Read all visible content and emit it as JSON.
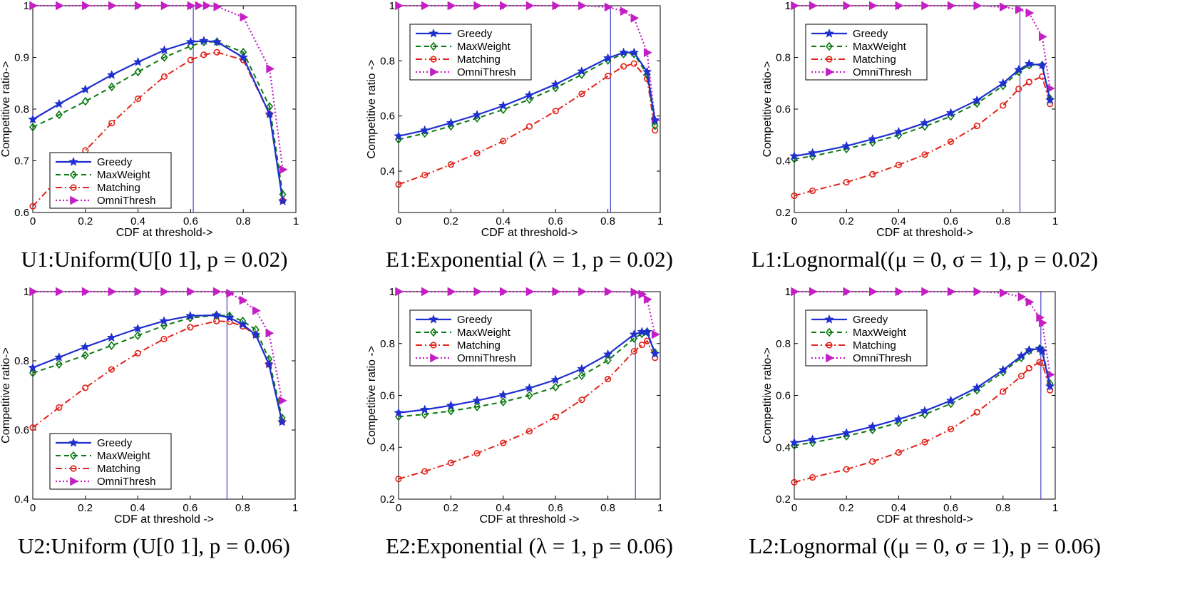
{
  "figure": {
    "colors": {
      "Greedy": "#1f2fd0",
      "MaxWeight": "#0a7a10",
      "Matching": "#e2231a",
      "OmniThresh": "#c41ec4",
      "threshold_line": "#2020c0"
    }
  },
  "chart_data": [
    {
      "type": "line",
      "caption": "U1:Uniform(U[0 1], p = 0.02)",
      "xlabel": "CDF at threshold->",
      "ylabel": "Competitive ratio->",
      "xlim": [
        0,
        1
      ],
      "ylim": [
        0.6,
        1
      ],
      "xticks": [
        0,
        0.2,
        0.4,
        0.6,
        0.8,
        1
      ],
      "xtick_labels": [
        "0",
        "0.2",
        "0.4",
        "0.6",
        "0.8",
        "1"
      ],
      "yticks": [
        0.6,
        0.7,
        0.8,
        0.9,
        1
      ],
      "ytick_labels": [
        "0.6",
        "0.7",
        "0.8",
        "0.9",
        "1"
      ],
      "threshold_x": 0.61,
      "legend": {
        "position": "lower-left",
        "entries": [
          "Greedy",
          "MaxWeight",
          "Matching",
          "OmniThresh"
        ]
      },
      "series": [
        {
          "name": "Greedy",
          "x": [
            0,
            0.1,
            0.2,
            0.3,
            0.4,
            0.5,
            0.6,
            0.65,
            0.7,
            0.8,
            0.9,
            0.95
          ],
          "y": [
            0.78,
            0.81,
            0.838,
            0.866,
            0.891,
            0.914,
            0.93,
            0.932,
            0.93,
            0.9,
            0.79,
            0.622
          ]
        },
        {
          "name": "MaxWeight",
          "x": [
            0,
            0.1,
            0.2,
            0.3,
            0.4,
            0.5,
            0.6,
            0.65,
            0.7,
            0.8,
            0.9,
            0.95
          ],
          "y": [
            0.765,
            0.789,
            0.815,
            0.843,
            0.872,
            0.9,
            0.922,
            0.93,
            0.93,
            0.91,
            0.805,
            0.635
          ]
        },
        {
          "name": "Matching",
          "x": [
            0,
            0.1,
            0.2,
            0.3,
            0.4,
            0.5,
            0.6,
            0.65,
            0.7,
            0.8,
            0.9,
            0.95
          ],
          "y": [
            0.612,
            0.667,
            0.72,
            0.773,
            0.82,
            0.863,
            0.895,
            0.905,
            0.91,
            0.895,
            0.79,
            0.623
          ]
        },
        {
          "name": "OmniThresh",
          "x": [
            0,
            0.1,
            0.2,
            0.3,
            0.4,
            0.5,
            0.6,
            0.63,
            0.66,
            0.7,
            0.8,
            0.9,
            0.95
          ],
          "y": [
            1,
            1,
            1,
            1,
            1,
            1,
            1,
            1,
            1,
            0.998,
            0.978,
            0.878,
            0.683
          ]
        }
      ]
    },
    {
      "type": "line",
      "caption": "E1:Exponential (λ = 1, p = 0.02)",
      "xlabel": "CDF at threshold->",
      "ylabel": "Competitive ratio ->",
      "xlim": [
        0,
        1
      ],
      "ylim": [
        0.25,
        1
      ],
      "xticks": [
        0,
        0.2,
        0.4,
        0.6,
        0.8,
        1
      ],
      "xtick_labels": [
        "0",
        "0.2",
        "0.4",
        "0.6",
        "0.8",
        "1"
      ],
      "yticks": [
        0.4,
        0.6,
        0.8,
        1
      ],
      "ytick_labels": [
        "0.4",
        "0.6",
        "0.8",
        "1"
      ],
      "threshold_x": 0.81,
      "legend": {
        "position": "top-left",
        "entries": [
          "Greedy",
          "MaxWeight",
          "Matching",
          "OmniThresh"
        ]
      },
      "series": [
        {
          "name": "Greedy",
          "x": [
            0,
            0.1,
            0.2,
            0.3,
            0.4,
            0.5,
            0.6,
            0.7,
            0.8,
            0.86,
            0.9,
            0.95,
            0.98
          ],
          "y": [
            0.527,
            0.548,
            0.575,
            0.604,
            0.637,
            0.675,
            0.715,
            0.762,
            0.81,
            0.83,
            0.83,
            0.76,
            0.585
          ]
        },
        {
          "name": "MaxWeight",
          "x": [
            0,
            0.1,
            0.2,
            0.3,
            0.4,
            0.5,
            0.6,
            0.7,
            0.8,
            0.86,
            0.9,
            0.95,
            0.98
          ],
          "y": [
            0.515,
            0.537,
            0.563,
            0.592,
            0.623,
            0.66,
            0.702,
            0.75,
            0.802,
            0.825,
            0.825,
            0.75,
            0.565
          ]
        },
        {
          "name": "Matching",
          "x": [
            0,
            0.1,
            0.2,
            0.3,
            0.4,
            0.5,
            0.6,
            0.7,
            0.8,
            0.86,
            0.9,
            0.95,
            0.98
          ],
          "y": [
            0.352,
            0.386,
            0.424,
            0.465,
            0.509,
            0.562,
            0.618,
            0.68,
            0.745,
            0.78,
            0.79,
            0.735,
            0.548
          ]
        },
        {
          "name": "OmniThresh",
          "x": [
            0,
            0.1,
            0.2,
            0.3,
            0.4,
            0.5,
            0.6,
            0.7,
            0.8,
            0.86,
            0.9,
            0.95,
            0.98
          ],
          "y": [
            1,
            1,
            1,
            1,
            1,
            1,
            1,
            1,
            0.995,
            0.98,
            0.955,
            0.83,
            0.585
          ]
        }
      ]
    },
    {
      "type": "line",
      "caption": "L1:Lognormal((μ = 0, σ = 1), p = 0.02)",
      "xlabel": "CDF at threshold->",
      "ylabel": "Competitive ratio->",
      "xlim": [
        0,
        1
      ],
      "ylim": [
        0.2,
        1
      ],
      "xticks": [
        0,
        0.2,
        0.4,
        0.6,
        0.8,
        1
      ],
      "xtick_labels": [
        "0",
        "0.2",
        "0.4",
        "0.6",
        "0.8",
        "1"
      ],
      "yticks": [
        0.2,
        0.4,
        0.6,
        0.8,
        1
      ],
      "ytick_labels": [
        "0.2",
        "0.4",
        "0.6",
        "0.8",
        "1"
      ],
      "threshold_x": 0.865,
      "legend": {
        "position": "top-left",
        "entries": [
          "Greedy",
          "MaxWeight",
          "Matching",
          "OmniThresh"
        ]
      },
      "series": [
        {
          "name": "Greedy",
          "x": [
            0,
            0.07,
            0.2,
            0.3,
            0.4,
            0.5,
            0.6,
            0.7,
            0.8,
            0.86,
            0.9,
            0.95,
            0.98
          ],
          "y": [
            0.418,
            0.43,
            0.457,
            0.484,
            0.512,
            0.546,
            0.585,
            0.634,
            0.7,
            0.752,
            0.775,
            0.77,
            0.635
          ]
        },
        {
          "name": "MaxWeight",
          "x": [
            0,
            0.07,
            0.2,
            0.3,
            0.4,
            0.5,
            0.6,
            0.7,
            0.8,
            0.86,
            0.9,
            0.95,
            0.98
          ],
          "y": [
            0.407,
            0.418,
            0.446,
            0.471,
            0.499,
            0.533,
            0.572,
            0.622,
            0.69,
            0.745,
            0.77,
            0.77,
            0.64
          ]
        },
        {
          "name": "Matching",
          "x": [
            0,
            0.07,
            0.2,
            0.3,
            0.4,
            0.5,
            0.6,
            0.7,
            0.8,
            0.86,
            0.9,
            0.95,
            0.98
          ],
          "y": [
            0.265,
            0.284,
            0.317,
            0.348,
            0.384,
            0.424,
            0.474,
            0.535,
            0.614,
            0.678,
            0.705,
            0.726,
            0.62
          ]
        },
        {
          "name": "OmniThresh",
          "x": [
            0,
            0.07,
            0.2,
            0.3,
            0.4,
            0.5,
            0.6,
            0.7,
            0.8,
            0.86,
            0.9,
            0.95,
            0.98
          ],
          "y": [
            1,
            1,
            1,
            1,
            1,
            1,
            1,
            1,
            0.995,
            0.985,
            0.972,
            0.88,
            0.68
          ]
        }
      ]
    },
    {
      "type": "line",
      "caption": "U2:Uniform (U[0 1], p = 0.06)",
      "xlabel": "CDF at threshold ->",
      "ylabel": "Competitive ratio->",
      "xlim": [
        0,
        1
      ],
      "ylim": [
        0.4,
        1
      ],
      "xticks": [
        0,
        0.2,
        0.4,
        0.6,
        0.8,
        1
      ],
      "xtick_labels": [
        "0",
        "0.2",
        "0.4",
        "0.6",
        "0.8",
        "1"
      ],
      "yticks": [
        0.4,
        0.6,
        0.8,
        1
      ],
      "ytick_labels": [
        "0.4",
        "0.6",
        "0.8",
        "1"
      ],
      "threshold_x": 0.74,
      "legend": {
        "position": "lower-left",
        "entries": [
          "Greedy",
          "MaxWeight",
          "Matching",
          "OmniThresh"
        ]
      },
      "series": [
        {
          "name": "Greedy",
          "x": [
            0,
            0.1,
            0.2,
            0.3,
            0.4,
            0.5,
            0.6,
            0.7,
            0.75,
            0.8,
            0.85,
            0.9,
            0.95
          ],
          "y": [
            0.78,
            0.81,
            0.84,
            0.867,
            0.893,
            0.915,
            0.93,
            0.932,
            0.925,
            0.905,
            0.875,
            0.79,
            0.623
          ]
        },
        {
          "name": "MaxWeight",
          "x": [
            0,
            0.1,
            0.2,
            0.3,
            0.4,
            0.5,
            0.6,
            0.7,
            0.75,
            0.8,
            0.85,
            0.9,
            0.95
          ],
          "y": [
            0.765,
            0.79,
            0.816,
            0.844,
            0.873,
            0.902,
            0.924,
            0.932,
            0.93,
            0.915,
            0.89,
            0.805,
            0.635
          ]
        },
        {
          "name": "Matching",
          "x": [
            0,
            0.1,
            0.2,
            0.3,
            0.4,
            0.5,
            0.6,
            0.7,
            0.75,
            0.8,
            0.85,
            0.9,
            0.95
          ],
          "y": [
            0.607,
            0.665,
            0.722,
            0.775,
            0.822,
            0.863,
            0.897,
            0.915,
            0.913,
            0.9,
            0.875,
            0.79,
            0.625
          ]
        },
        {
          "name": "OmniThresh",
          "x": [
            0,
            0.1,
            0.2,
            0.3,
            0.4,
            0.5,
            0.6,
            0.7,
            0.75,
            0.8,
            0.85,
            0.9,
            0.95
          ],
          "y": [
            1,
            1,
            1,
            1,
            1,
            1,
            1,
            1,
            0.995,
            0.975,
            0.945,
            0.88,
            0.685
          ]
        }
      ]
    },
    {
      "type": "line",
      "caption": "E2:Exponential (λ = 1, p = 0.06)",
      "xlabel": "CDF at threshold ->",
      "ylabel": "Competitive ratio ->",
      "xlim": [
        0,
        1
      ],
      "ylim": [
        0.2,
        1
      ],
      "xticks": [
        0,
        0.2,
        0.4,
        0.6,
        0.8,
        1
      ],
      "xtick_labels": [
        "0",
        "0.2",
        "0.4",
        "0.6",
        "0.8",
        "1"
      ],
      "yticks": [
        0.2,
        0.4,
        0.6,
        0.8,
        1
      ],
      "ytick_labels": [
        "0.2",
        "0.4",
        "0.6",
        "0.8",
        "1"
      ],
      "threshold_x": 0.905,
      "legend": {
        "position": "top-left",
        "entries": [
          "Greedy",
          "MaxWeight",
          "Matching",
          "OmniThresh"
        ]
      },
      "series": [
        {
          "name": "Greedy",
          "x": [
            0,
            0.1,
            0.2,
            0.3,
            0.4,
            0.5,
            0.6,
            0.7,
            0.8,
            0.9,
            0.93,
            0.95,
            0.98
          ],
          "y": [
            0.533,
            0.545,
            0.561,
            0.58,
            0.602,
            0.628,
            0.66,
            0.702,
            0.758,
            0.835,
            0.845,
            0.845,
            0.76
          ]
        },
        {
          "name": "MaxWeight",
          "x": [
            0,
            0.1,
            0.2,
            0.3,
            0.4,
            0.5,
            0.6,
            0.7,
            0.8,
            0.9,
            0.93,
            0.95,
            0.98
          ],
          "y": [
            0.518,
            0.527,
            0.54,
            0.556,
            0.575,
            0.6,
            0.632,
            0.676,
            0.735,
            0.82,
            0.838,
            0.845,
            0.765
          ]
        },
        {
          "name": "Matching",
          "x": [
            0,
            0.1,
            0.2,
            0.3,
            0.4,
            0.5,
            0.6,
            0.7,
            0.8,
            0.9,
            0.93,
            0.95,
            0.98
          ],
          "y": [
            0.278,
            0.307,
            0.34,
            0.377,
            0.417,
            0.462,
            0.517,
            0.583,
            0.663,
            0.77,
            0.795,
            0.81,
            0.745
          ]
        },
        {
          "name": "OmniThresh",
          "x": [
            0,
            0.1,
            0.2,
            0.3,
            0.4,
            0.5,
            0.6,
            0.7,
            0.8,
            0.9,
            0.93,
            0.95,
            0.98
          ],
          "y": [
            1,
            1,
            1,
            1,
            1,
            1,
            1,
            1,
            1,
            0.998,
            0.99,
            0.97,
            0.835
          ]
        }
      ]
    },
    {
      "type": "line",
      "caption": "L2:Lognormal ((μ = 0, σ = 1), p = 0.06)",
      "xlabel": "CDF at threshold->",
      "ylabel": "Competitive ratio->",
      "xlim": [
        0,
        1
      ],
      "ylim": [
        0.2,
        1
      ],
      "xticks": [
        0,
        0.2,
        0.4,
        0.6,
        0.8,
        1
      ],
      "xtick_labels": [
        "0",
        "0.2",
        "0.4",
        "0.6",
        "0.8",
        "1"
      ],
      "yticks": [
        0.2,
        0.4,
        0.6,
        0.8,
        1
      ],
      "ytick_labels": [
        "0.2",
        "0.4",
        "0.6",
        "0.8",
        "1"
      ],
      "threshold_x": 0.945,
      "legend": {
        "position": "top-left",
        "entries": [
          "Greedy",
          "MaxWeight",
          "Matching",
          "OmniThresh"
        ]
      },
      "series": [
        {
          "name": "Greedy",
          "x": [
            0,
            0.07,
            0.2,
            0.3,
            0.4,
            0.5,
            0.6,
            0.7,
            0.8,
            0.87,
            0.9,
            0.94,
            0.95,
            0.98
          ],
          "y": [
            0.418,
            0.43,
            0.455,
            0.48,
            0.508,
            0.54,
            0.58,
            0.63,
            0.698,
            0.752,
            0.775,
            0.78,
            0.77,
            0.635
          ]
        },
        {
          "name": "MaxWeight",
          "x": [
            0,
            0.07,
            0.2,
            0.3,
            0.4,
            0.5,
            0.6,
            0.7,
            0.8,
            0.87,
            0.9,
            0.94,
            0.95,
            0.98
          ],
          "y": [
            0.407,
            0.418,
            0.443,
            0.467,
            0.495,
            0.527,
            0.568,
            0.62,
            0.69,
            0.745,
            0.772,
            0.78,
            0.775,
            0.645
          ]
        },
        {
          "name": "Matching",
          "x": [
            0,
            0.07,
            0.2,
            0.3,
            0.4,
            0.5,
            0.6,
            0.7,
            0.8,
            0.87,
            0.9,
            0.94,
            0.95,
            0.98
          ],
          "y": [
            0.265,
            0.284,
            0.315,
            0.345,
            0.38,
            0.42,
            0.47,
            0.535,
            0.615,
            0.675,
            0.705,
            0.728,
            0.725,
            0.62
          ]
        },
        {
          "name": "OmniThresh",
          "x": [
            0,
            0.07,
            0.2,
            0.3,
            0.4,
            0.5,
            0.6,
            0.7,
            0.8,
            0.87,
            0.9,
            0.94,
            0.95,
            0.98
          ],
          "y": [
            1,
            1,
            1,
            1,
            1,
            1,
            1,
            1,
            0.995,
            0.98,
            0.96,
            0.9,
            0.88,
            0.68
          ]
        }
      ]
    }
  ]
}
